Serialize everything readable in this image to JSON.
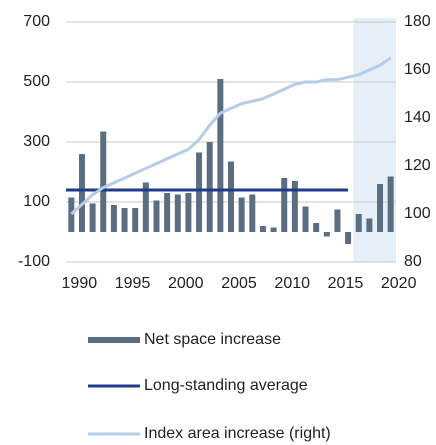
{
  "chart_data": {
    "type": "bar",
    "x": [
      1990,
      1991,
      1992,
      1993,
      1994,
      1995,
      1996,
      1997,
      1998,
      1999,
      2000,
      2001,
      2002,
      2003,
      2004,
      2005,
      2006,
      2007,
      2008,
      2009,
      2010,
      2011,
      2012,
      2013,
      2014,
      2015,
      2016,
      2017,
      2018,
      2019,
      2020
    ],
    "xlim": [
      1989.5,
      2020.5
    ],
    "xticks": [
      1990,
      1995,
      2000,
      2005,
      2010,
      2015,
      2020
    ],
    "ylim": [
      -100,
      700
    ],
    "yticks": [
      -100,
      100,
      300,
      500,
      700
    ],
    "y2lim": [
      80,
      180
    ],
    "y2ticks": [
      80,
      100,
      120,
      140,
      160,
      180
    ],
    "grid": true,
    "highlight_x": [
      2016.5,
      2020.5
    ],
    "highlight_color": "#e6eef8",
    "series": [
      {
        "name": "Net space increase",
        "type": "bar",
        "color": "#5b6d80",
        "values": [
          115,
          260,
          95,
          335,
          90,
          80,
          80,
          165,
          105,
          130,
          125,
          130,
          265,
          300,
          510,
          235,
          115,
          125,
          20,
          15,
          180,
          170,
          85,
          30,
          -15,
          75,
          -40,
          60,
          45,
          160,
          185
        ]
      },
      {
        "name": "Long-standing average",
        "type": "hline",
        "color": "#1f3a8a",
        "value": 140
      },
      {
        "name": "Index area increase (right)",
        "type": "line",
        "color": "#b4cde8",
        "axis": "y2",
        "values": [
          100,
          104,
          108,
          111,
          113,
          115,
          117,
          119,
          121,
          123,
          125,
          127,
          131,
          137,
          142,
          144,
          146,
          147,
          148,
          150,
          152,
          154,
          155,
          155,
          156,
          156,
          157,
          158,
          160,
          162,
          165
        ]
      }
    ],
    "legend": "bottom"
  }
}
